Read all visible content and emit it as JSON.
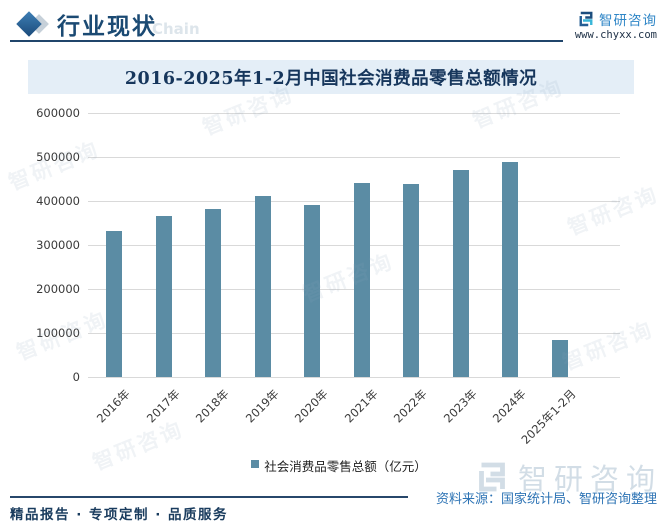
{
  "header": {
    "section_title": "行业现状",
    "brand": {
      "name": "智研咨询",
      "website": "www.chyxx.com"
    }
  },
  "chart_data": {
    "type": "bar",
    "title": "2016-2025年1-2月中国社会消费品零售总额情况",
    "series_name": "社会消费品零售总额（亿元）",
    "categories": [
      "2016年",
      "2017年",
      "2018年",
      "2019年",
      "2020年",
      "2021年",
      "2022年",
      "2023年",
      "2024年",
      "2025年1-2月"
    ],
    "values": [
      332316,
      366262,
      380987,
      411649,
      391981,
      440823,
      439733,
      471495,
      487895,
      83731
    ],
    "xlabel": "",
    "ylabel": "",
    "ylim": [
      0,
      600000
    ],
    "ytick_interval": 100000,
    "grid": true,
    "legend_position": "bottom",
    "bar_color": "#5b8ca4"
  },
  "footer": {
    "tagline": "精品报告 · 专项定制 · 品质服务",
    "source": "资料来源：国家统计局、智研咨询整理"
  },
  "watermark": {
    "brand": "智研咨询",
    "chain_text": "Chain"
  }
}
